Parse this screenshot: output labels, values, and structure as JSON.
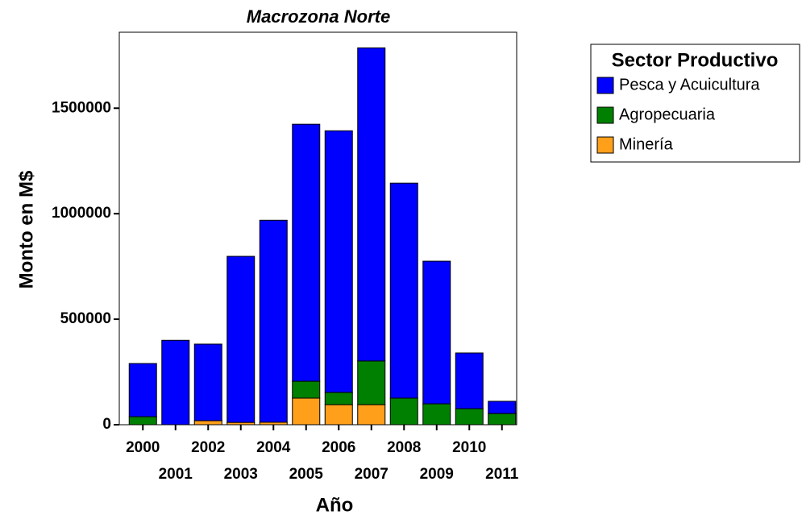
{
  "chart_data": {
    "type": "stacked_bar",
    "title": "Macrozona Norte",
    "x_label": "Año",
    "y_label": "Monto en M$",
    "categories": [
      "2000",
      "2001",
      "2002",
      "2003",
      "2004",
      "2005",
      "2006",
      "2007",
      "2008",
      "2009",
      "2010",
      "2011"
    ],
    "series": [
      {
        "name": "Minería",
        "color": "#ff9f1a",
        "values": [
          0,
          0,
          19000,
          11000,
          12000,
          126000,
          95000,
          95000,
          0,
          0,
          0,
          0
        ]
      },
      {
        "name": "Agropecuaria",
        "color": "#008000",
        "values": [
          38000,
          0,
          0,
          0,
          0,
          80000,
          58000,
          207000,
          126000,
          99000,
          76000,
          53000
        ]
      },
      {
        "name": "Pesca y Acuicultura",
        "color": "#0000ff",
        "values": [
          252000,
          400000,
          363000,
          787000,
          957000,
          1218000,
          1240000,
          1484000,
          1019000,
          676000,
          264000,
          58000
        ]
      }
    ],
    "legend_title": "Sector Productivo",
    "ylim": [
      0,
      1860000
    ],
    "yticks": [
      0,
      500000,
      1000000,
      1500000
    ]
  }
}
